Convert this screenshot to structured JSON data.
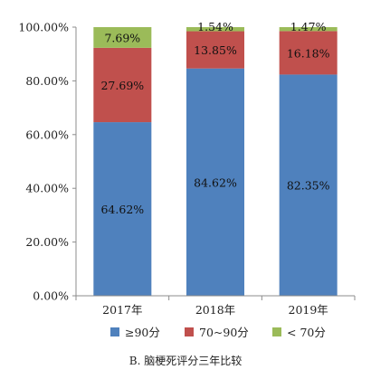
{
  "chart_data": {
    "type": "bar",
    "stacked": true,
    "categories": [
      "2017年",
      "2018年",
      "2019年"
    ],
    "series": [
      {
        "name": "≥90分",
        "color": "#4F81BD",
        "values": [
          64.62,
          84.62,
          82.35
        ],
        "labels": [
          "64.62%",
          "84.62%",
          "82.35%"
        ]
      },
      {
        "name": "70~90分",
        "color": "#C0504D",
        "values": [
          27.69,
          13.85,
          16.18
        ],
        "labels": [
          "27.69%",
          "13.85%",
          "16.18%"
        ]
      },
      {
        "name": "< 70分",
        "color": "#9BBB59",
        "values": [
          7.69,
          1.54,
          1.47
        ],
        "labels": [
          "7.69%",
          "1.54%",
          "1.47%"
        ]
      }
    ],
    "ylim": [
      0,
      100
    ],
    "yticks": [
      0,
      20,
      40,
      60,
      80,
      100
    ],
    "ytick_labels": [
      "0.00%",
      "20.00%",
      "40.00%",
      "60.00%",
      "80.00%",
      "100.00%"
    ],
    "xlabel": "",
    "ylabel": "",
    "grid": false,
    "legend_position": "bottom"
  },
  "caption": "B. 脑梗死评分三年比较"
}
